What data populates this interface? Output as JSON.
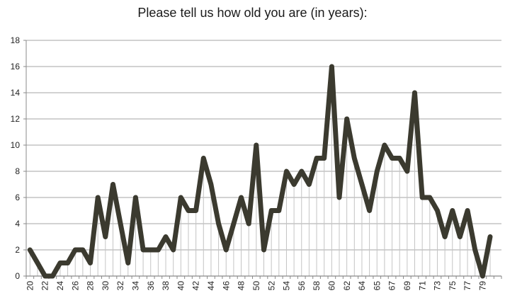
{
  "chart_data": {
    "type": "line",
    "title": "Please tell us how old you are (in years):",
    "xlabel": "",
    "ylabel": "",
    "ylim": [
      0,
      18
    ],
    "y_tick_step": 2,
    "y_tick_labels": [
      "0",
      "2",
      "4",
      "6",
      "8",
      "10",
      "12",
      "14",
      "16",
      "18"
    ],
    "x_tick_labels": [
      "20",
      "22",
      "24",
      "26",
      "28",
      "30",
      "32",
      "34",
      "36",
      "38",
      "40",
      "42",
      "44",
      "46",
      "48",
      "50",
      "52",
      "54",
      "56",
      "58",
      "60",
      "62",
      "64",
      "65",
      "67",
      "69",
      "71",
      "73",
      "75",
      "77",
      "79"
    ],
    "x_label_every_n_categories": 2,
    "values": [
      2,
      1,
      0,
      0,
      1,
      1,
      2,
      2,
      1,
      6,
      3,
      7,
      4,
      1,
      6,
      2,
      2,
      2,
      3,
      2,
      6,
      5,
      5,
      9,
      7,
      4,
      2,
      4,
      6,
      4,
      10,
      2,
      5,
      5,
      8,
      7,
      8,
      7,
      9,
      9,
      16,
      6,
      12,
      9,
      7,
      5,
      8,
      10,
      9,
      9,
      8,
      14,
      6,
      6,
      5,
      3,
      5,
      3,
      5,
      2,
      0,
      3
    ],
    "legend": "none",
    "grid": "horizontal-gridlines-and-vertical-drop-lines",
    "colors": {
      "line": "#3B3A2F",
      "gridline": "#A6A6A6",
      "drop_line": "#C4C4C4",
      "axis": "#898989",
      "tick_text": "#1F1F1F",
      "title_text": "#1a1a1a",
      "background": "#FFFFFF"
    }
  }
}
